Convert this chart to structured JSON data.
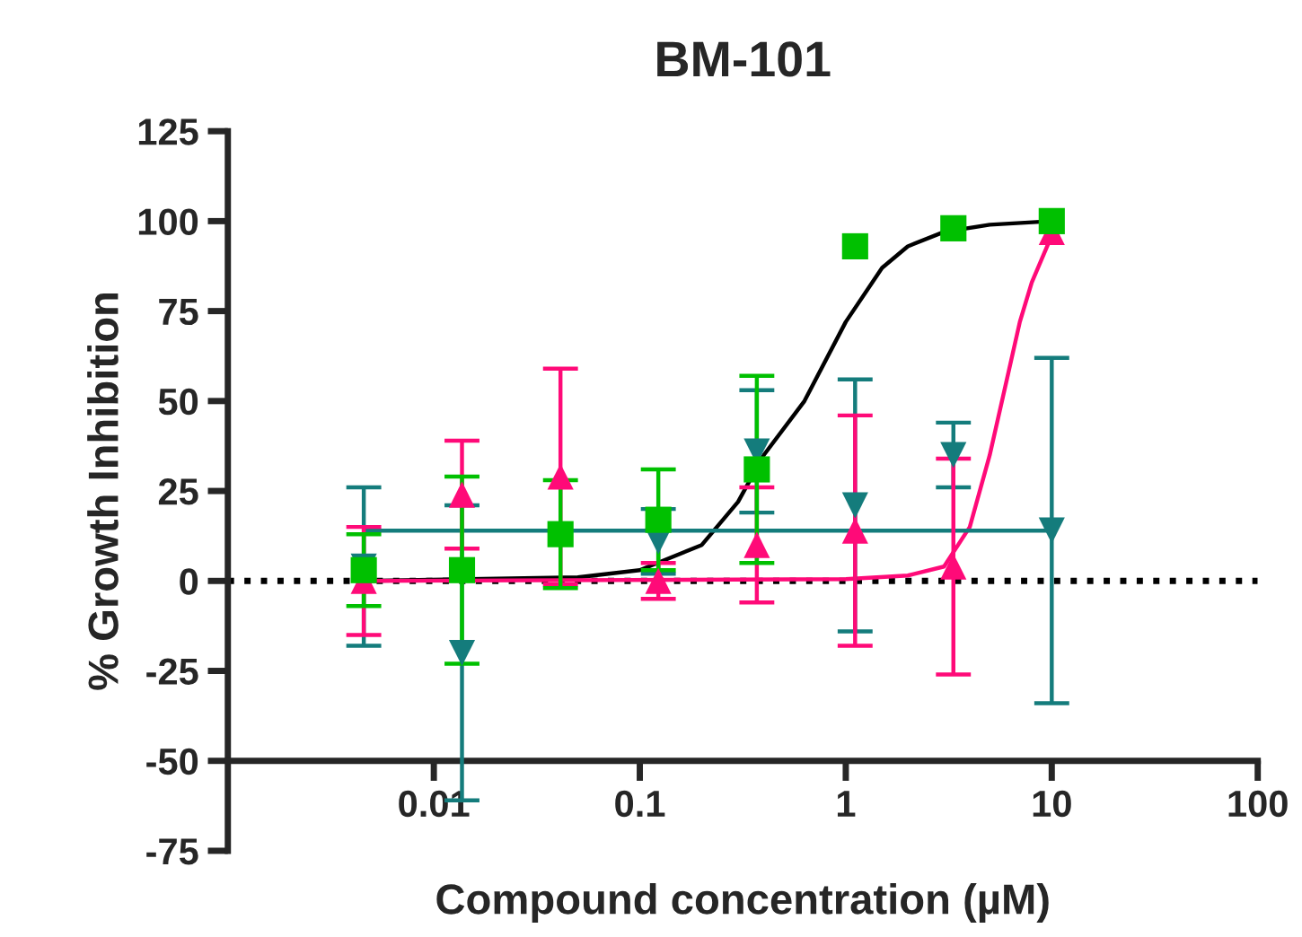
{
  "chart_data": {
    "type": "scatter",
    "title": "BM-101",
    "xlabel": "Compound concentration (µM)",
    "ylabel": "% Growth Inhibition",
    "log": "x",
    "xlim": [
      0.001,
      100
    ],
    "xticks": [
      0.01,
      0.1,
      1,
      10,
      100
    ],
    "ylim": [
      -75,
      125
    ],
    "yticks": [
      -75,
      -50,
      -25,
      0,
      25,
      50,
      75,
      100,
      125
    ],
    "grid": false,
    "legend": false,
    "ref_lines": [
      {
        "axis": "y",
        "value": 0,
        "color": "#000000",
        "line_style": "dotted"
      }
    ],
    "series": [
      {
        "type": "line",
        "color": "#000000",
        "marker": "none",
        "x": [
          0.0046,
          0.05,
          0.1,
          0.2,
          0.3,
          0.4,
          0.63,
          1.0,
          1.5,
          2,
          3,
          5,
          10
        ],
        "values": [
          0,
          1,
          3,
          10,
          22,
          35,
          50,
          72,
          87,
          93,
          97,
          99,
          100
        ]
      },
      {
        "type": "line",
        "color": "#ff0a78",
        "marker": "none",
        "x": [
          0.0046,
          1,
          2,
          3,
          4,
          5,
          6,
          7,
          8,
          10
        ],
        "values": [
          0,
          0.5,
          1.5,
          4,
          15,
          35,
          55,
          72,
          83,
          96
        ]
      },
      {
        "type": "line",
        "color": "#147c7c",
        "marker": "none",
        "x": [
          0.0046,
          10
        ],
        "values": [
          14,
          14
        ]
      },
      {
        "color": "#147c7c",
        "marker": "triangle_down",
        "x": [
          0.00457,
          0.0137,
          0.0412,
          0.123,
          0.37,
          1.11,
          3.33,
          10
        ],
        "values": [
          4,
          -20,
          null,
          11,
          36,
          21,
          35,
          14
        ],
        "errors": [
          22,
          41,
          null,
          9,
          17,
          35,
          9,
          48
        ]
      },
      {
        "color": "#ff0a78",
        "marker": "triangle",
        "x": [
          0.00457,
          0.0137,
          0.0412,
          0.123,
          0.37,
          1.11,
          3.33,
          10
        ],
        "values": [
          0,
          24,
          29,
          0,
          10,
          14,
          4,
          97
        ],
        "errors": [
          15,
          15,
          30,
          5,
          16,
          32,
          30,
          null
        ]
      },
      {
        "color": "#00c000",
        "marker": "square",
        "x": [
          0.00457,
          0.0137,
          0.0412,
          0.123,
          0.37,
          1.11,
          3.33,
          10
        ],
        "values": [
          3,
          3,
          13,
          17,
          31,
          93,
          98,
          100
        ],
        "errors": [
          10,
          26,
          15,
          14,
          26,
          null,
          null,
          null
        ]
      }
    ]
  }
}
